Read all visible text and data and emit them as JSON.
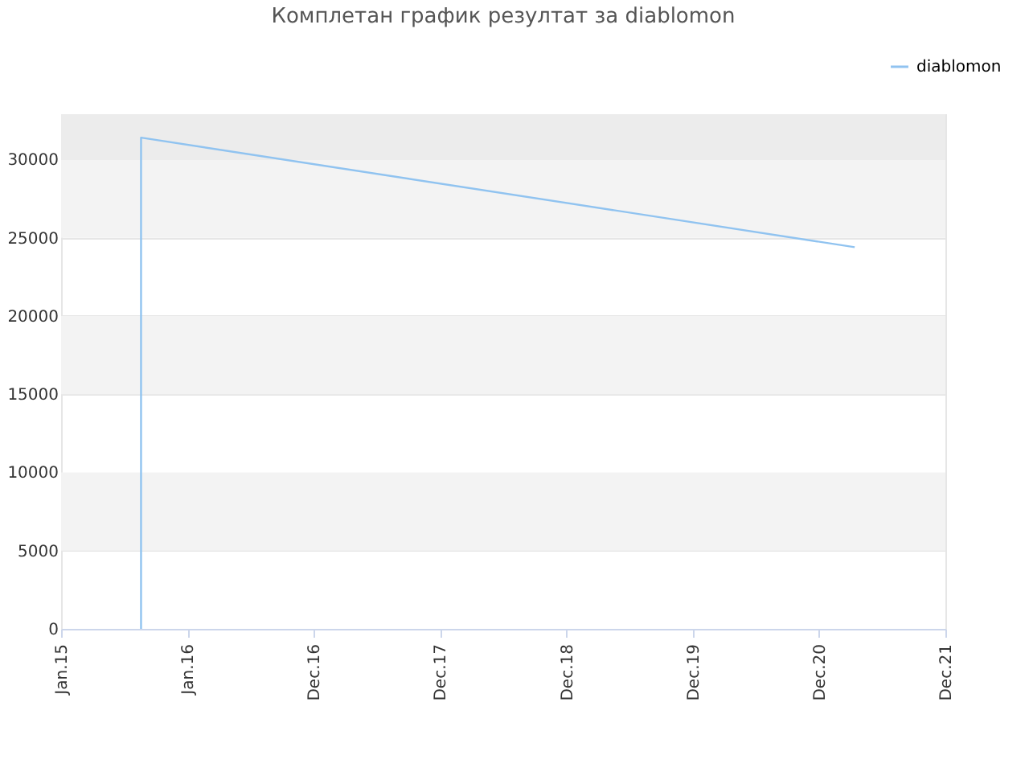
{
  "chart_data": {
    "type": "line",
    "title": "Комплетан график резултат за diablomon",
    "series": [
      {
        "name": "diablomon",
        "color": "#90c3f0",
        "x": [
          "2015-08-20",
          "2015-08-20",
          "2021-04-12"
        ],
        "values": [
          0,
          31400,
          24400
        ]
      }
    ],
    "xlim": [
      "2015-01-01",
      "2021-12-30"
    ],
    "xticks": [
      {
        "value": "2015-01-01",
        "label": "Jan.15"
      },
      {
        "value": "2016-01-01",
        "label": "Jan.16"
      },
      {
        "value": "2016-12-31",
        "label": "Dec.16"
      },
      {
        "value": "2017-12-31",
        "label": "Dec.17"
      },
      {
        "value": "2018-12-31",
        "label": "Dec.18"
      },
      {
        "value": "2019-12-31",
        "label": "Dec.19"
      },
      {
        "value": "2020-12-30",
        "label": "Dec.20"
      },
      {
        "value": "2021-12-30",
        "label": "Dec.21"
      }
    ],
    "ylim": [
      0,
      32900
    ],
    "yticks": [
      0,
      5000,
      10000,
      15000,
      20000,
      25000,
      30000
    ],
    "bands": [
      {
        "axis": "y",
        "from": 5000,
        "to": 10000,
        "color": "#f3f3f3"
      },
      {
        "axis": "y",
        "from": 15000,
        "to": 20000,
        "color": "#f3f3f3"
      },
      {
        "axis": "y",
        "from": 25000,
        "to": 30000,
        "color": "#f3f3f3"
      },
      {
        "axis": "y",
        "from": 30000,
        "to": 32900,
        "color": "#ececec"
      }
    ],
    "grid": "y",
    "legend": "top right",
    "marker": "none",
    "line_style": "solid"
  }
}
